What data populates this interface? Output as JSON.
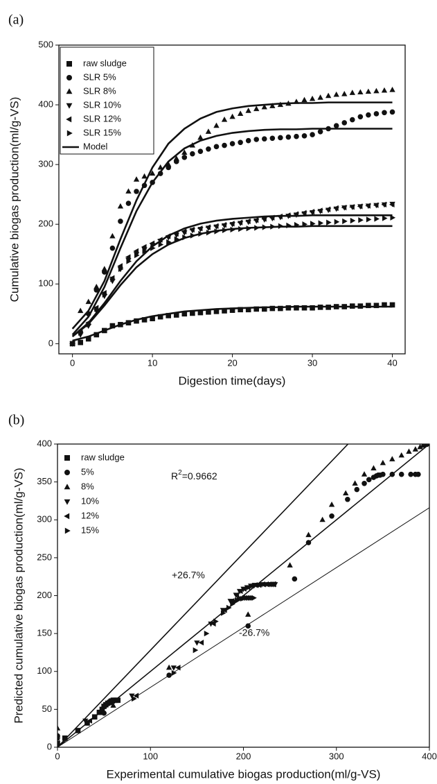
{
  "chart_data": [
    {
      "type": "scatter",
      "panel_label": "(a)",
      "xlabel": "Digestion time(days)",
      "ylabel": "Cumulative biogas production(ml/g-VS)",
      "xlim": [
        -1.7,
        41.6
      ],
      "ylim": [
        -17,
        500
      ],
      "xticks": [
        0,
        10,
        20,
        30,
        40
      ],
      "yticks": [
        0,
        100,
        200,
        300,
        400,
        500
      ],
      "x": [
        0,
        1,
        2,
        3,
        4,
        5,
        6,
        7,
        8,
        9,
        10,
        11,
        12,
        13,
        14,
        15,
        16,
        17,
        18,
        19,
        20,
        21,
        22,
        23,
        24,
        25,
        26,
        27,
        28,
        29,
        30,
        31,
        32,
        33,
        34,
        35,
        36,
        37,
        38,
        39,
        40
      ],
      "series": [
        {
          "name": "raw sludge",
          "marker": "square",
          "color": "#111111",
          "values": [
            0,
            2,
            8,
            15,
            22,
            30,
            32,
            35,
            38,
            40,
            42,
            45,
            47,
            48,
            50,
            51,
            52,
            53,
            54,
            55,
            56,
            57,
            57,
            58,
            58,
            59,
            59,
            60,
            60,
            60,
            60,
            61,
            61,
            62,
            62,
            63,
            63,
            64,
            64,
            65,
            65
          ]
        },
        {
          "name": "SLR 5%",
          "marker": "circle",
          "color": "#111111",
          "values": [
            0,
            20,
            50,
            90,
            120,
            160,
            205,
            235,
            255,
            265,
            270,
            285,
            295,
            305,
            312,
            318,
            322,
            326,
            330,
            332,
            335,
            337,
            340,
            342,
            343,
            344,
            345,
            346,
            347,
            348,
            350,
            355,
            360,
            365,
            370,
            375,
            380,
            383,
            385,
            387,
            388
          ]
        },
        {
          "name": "SLR 8%",
          "marker": "up",
          "color": "#111111",
          "values": [
            0,
            55,
            70,
            95,
            125,
            180,
            230,
            255,
            275,
            280,
            285,
            295,
            300,
            310,
            320,
            332,
            345,
            355,
            365,
            375,
            380,
            385,
            390,
            393,
            396,
            398,
            400,
            402,
            405,
            408,
            410,
            412,
            415,
            417,
            418,
            420,
            421,
            422,
            423,
            424,
            425
          ]
        },
        {
          "name": "SLR 10%",
          "marker": "down",
          "color": "#111111",
          "values": [
            0,
            15,
            30,
            55,
            80,
            105,
            125,
            140,
            150,
            158,
            165,
            172,
            178,
            182,
            186,
            190,
            192,
            194,
            196,
            198,
            200,
            202,
            204,
            206,
            208,
            210,
            212,
            214,
            216,
            218,
            220,
            222,
            224,
            226,
            228,
            229,
            230,
            231,
            232,
            233,
            234
          ]
        },
        {
          "name": "SLR 12%",
          "marker": "left",
          "color": "#111111",
          "values": [
            0,
            20,
            35,
            60,
            85,
            110,
            130,
            145,
            155,
            162,
            168,
            174,
            180,
            184,
            188,
            191,
            193,
            195,
            197,
            199,
            201,
            203,
            205,
            207,
            209,
            211,
            213,
            215,
            217,
            219,
            221,
            223,
            225,
            227,
            228,
            229,
            230,
            231,
            232,
            233,
            233
          ]
        },
        {
          "name": "SLR 15%",
          "marker": "right",
          "color": "#111111",
          "values": [
            0,
            18,
            32,
            58,
            82,
            108,
            125,
            138,
            148,
            155,
            160,
            166,
            170,
            175,
            178,
            181,
            184,
            186,
            188,
            190,
            191,
            192,
            193,
            194,
            195,
            196,
            197,
            198,
            199,
            200,
            201,
            202,
            203,
            204,
            205,
            206,
            207,
            208,
            209,
            210,
            211
          ]
        }
      ],
      "model": {
        "name": "Model",
        "color": "#111111",
        "x": [
          0,
          2,
          4,
          6,
          8,
          10,
          12,
          14,
          16,
          18,
          20,
          22,
          24,
          26,
          28,
          30,
          32,
          34,
          36,
          38,
          40
        ],
        "curves": [
          [
            5,
            12,
            22,
            32,
            40,
            46,
            50,
            54,
            56,
            58,
            59,
            60,
            61,
            61,
            62,
            62,
            62,
            62,
            62,
            62,
            62
          ],
          [
            15,
            45,
            95,
            160,
            222,
            270,
            305,
            327,
            340,
            348,
            353,
            356,
            358,
            359,
            359,
            360,
            360,
            360,
            360,
            360,
            360
          ],
          [
            25,
            55,
            105,
            175,
            240,
            295,
            335,
            360,
            377,
            388,
            394,
            398,
            400,
            402,
            403,
            403,
            404,
            404,
            404,
            404,
            404
          ],
          [
            12,
            35,
            68,
            105,
            138,
            163,
            181,
            193,
            201,
            206,
            209,
            211,
            213,
            214,
            214,
            215,
            215,
            215,
            215,
            215,
            215
          ],
          [
            12,
            33,
            64,
            98,
            128,
            150,
            166,
            177,
            184,
            189,
            192,
            194,
            195,
            196,
            196,
            197,
            197,
            197,
            197,
            197,
            197
          ]
        ]
      }
    },
    {
      "type": "scatter",
      "panel_label": "(b)",
      "xlabel": "Experimental cumulative biogas production(ml/g-VS)",
      "ylabel": "Predicted cumulative biogas production(ml/g-VS)",
      "xlim": [
        0,
        400
      ],
      "ylim": [
        0,
        400
      ],
      "xticks": [
        0,
        100,
        200,
        300,
        400
      ],
      "yticks": [
        0,
        50,
        100,
        150,
        200,
        250,
        300,
        350,
        400
      ],
      "annotation": {
        "base": "R",
        "sup": "2",
        "rest": "=0.9662"
      },
      "reference_lines": [
        {
          "slope": 1.28,
          "label": "+26.7%"
        },
        {
          "slope": 1
        },
        {
          "slope": 0.79,
          "label": "-26.7%"
        }
      ],
      "series": [
        {
          "name": "raw sludge",
          "marker": "square",
          "color": "#111111",
          "x": [
            0,
            8,
            22,
            32,
            40,
            45,
            48,
            50,
            52,
            54,
            56,
            57,
            58,
            59,
            60,
            60,
            61,
            62,
            63,
            64,
            65
          ],
          "values": [
            5,
            12,
            22,
            32,
            40,
            46,
            50,
            54,
            56,
            58,
            59,
            60,
            61,
            61,
            62,
            62,
            62,
            62,
            62,
            62,
            62
          ]
        },
        {
          "name": "5%",
          "marker": "circle",
          "color": "#111111",
          "x": [
            0,
            50,
            120,
            205,
            255,
            270,
            295,
            312,
            322,
            330,
            335,
            340,
            343,
            345,
            347,
            350,
            360,
            370,
            380,
            385,
            388
          ],
          "values": [
            15,
            45,
            95,
            160,
            222,
            270,
            305,
            327,
            340,
            348,
            353,
            356,
            358,
            359,
            359,
            360,
            360,
            360,
            360,
            360,
            360
          ]
        },
        {
          "name": "8%",
          "marker": "up",
          "color": "#111111",
          "x": [
            0,
            60,
            120,
            205,
            250,
            270,
            285,
            295,
            310,
            320,
            330,
            340,
            350,
            360,
            370,
            378,
            385,
            390,
            393,
            396,
            398
          ],
          "values": [
            25,
            55,
            105,
            175,
            240,
            280,
            300,
            320,
            335,
            348,
            360,
            368,
            375,
            380,
            385,
            390,
            393,
            396,
            398,
            399,
            400
          ]
        },
        {
          "name": "10%",
          "marker": "down",
          "color": "#111111",
          "x": [
            0,
            30,
            80,
            125,
            150,
            165,
            178,
            186,
            192,
            196,
            200,
            204,
            208,
            212,
            216,
            220,
            224,
            228,
            230,
            232,
            234
          ],
          "values": [
            12,
            35,
            68,
            105,
            138,
            163,
            181,
            193,
            201,
            206,
            209,
            211,
            213,
            214,
            214,
            215,
            215,
            215,
            215,
            215,
            215
          ]
        },
        {
          "name": "12%",
          "marker": "left",
          "color": "#111111",
          "x": [
            0,
            35,
            85,
            130,
            155,
            168,
            180,
            188,
            193,
            197,
            201,
            205,
            209,
            213,
            217,
            221,
            225,
            228,
            230,
            232,
            233
          ],
          "values": [
            12,
            35,
            68,
            105,
            138,
            163,
            181,
            193,
            201,
            206,
            209,
            211,
            213,
            214,
            214,
            215,
            215,
            215,
            215,
            215,
            215
          ]
        },
        {
          "name": "15%",
          "marker": "right",
          "color": "#111111",
          "x": [
            0,
            32,
            82,
            125,
            148,
            160,
            170,
            178,
            184,
            188,
            191,
            193,
            195,
            197,
            199,
            201,
            203,
            205,
            207,
            209,
            211
          ],
          "values": [
            12,
            33,
            64,
            98,
            128,
            150,
            166,
            177,
            184,
            189,
            192,
            194,
            195,
            196,
            196,
            197,
            197,
            197,
            197,
            197,
            197
          ]
        }
      ]
    }
  ]
}
